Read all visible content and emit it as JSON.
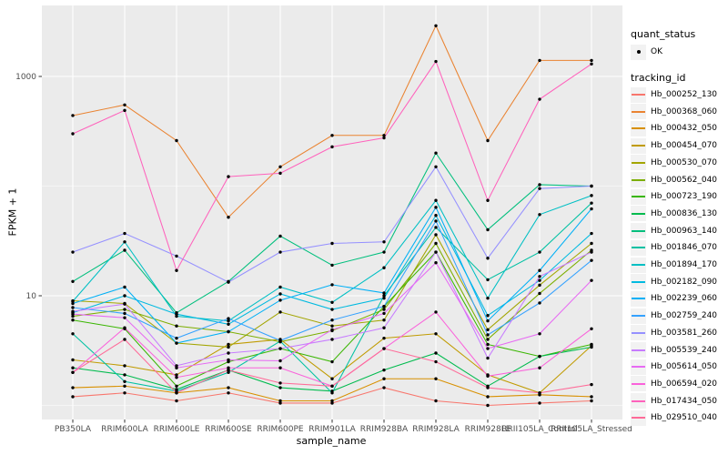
{
  "figure": {
    "background": "#FFFFFF",
    "panel_background": "#EBEBEB",
    "grid_color": "#FFFFFF",
    "axis_text_color": "#4D4D4D",
    "tick_color": "#333333",
    "point_color": "#000000"
  },
  "axes": {
    "x_title": "sample_name",
    "y_title": "FPKM + 1"
  },
  "legend": {
    "quant_status_title": "quant_status",
    "quant_status_items": [
      {
        "label": "OK",
        "shape": "point"
      }
    ],
    "tracking_id_title": "tracking_id"
  },
  "chart_data": {
    "type": "line",
    "title": "",
    "xlabel": "sample_name",
    "ylabel": "FPKM + 1",
    "y_scale": "log10",
    "grid": true,
    "legend_position": "right",
    "y_major_ticks": [
      1000,
      10
    ],
    "y_minor_gridlines": [
      100,
      1
    ],
    "ylim_log": [
      1,
      3000
    ],
    "point_marker": "black-dot",
    "categories": [
      "PB350LA",
      "RRIM600LA",
      "RRIM600LE",
      "RRIM600SE",
      "RRIM600PE",
      "RRIM901LA",
      "RRIM928BA",
      "RRIM928LA",
      "RRIM928LE",
      "RRII105LA_Control",
      "RRII105LA_Stressed"
    ],
    "series": [
      {
        "name": "Hb_000252_130",
        "color": "#F8766D",
        "values": [
          1.2,
          1.3,
          1.1,
          1.3,
          1.05,
          1.05,
          1.45,
          1.1,
          1.0,
          1.05,
          1.1
        ]
      },
      {
        "name": "Hb_000368_060",
        "color": "#EA8331",
        "values": [
          440,
          550,
          260,
          52,
          150,
          290,
          290,
          2900,
          260,
          1400,
          1400
        ]
      },
      {
        "name": "Hb_000432_050",
        "color": "#D89000",
        "values": [
          1.45,
          1.5,
          1.3,
          1.45,
          1.1,
          1.1,
          1.75,
          1.75,
          1.2,
          1.25,
          1.2
        ]
      },
      {
        "name": "Hb_000454_070",
        "color": "#C09B00",
        "values": [
          2.6,
          2.3,
          1.9,
          3.6,
          4.0,
          1.75,
          4.1,
          4.5,
          1.9,
          1.3,
          3.5
        ]
      },
      {
        "name": "Hb_000530_070",
        "color": "#A3A500",
        "values": [
          9.0,
          8.5,
          3.7,
          3.4,
          7.1,
          5.3,
          6.0,
          36,
          4.9,
          12.5,
          30
        ]
      },
      {
        "name": "Hb_000562_040",
        "color": "#7CAE00",
        "values": [
          6.5,
          7.5,
          5.3,
          4.7,
          3.8,
          4.8,
          7.5,
          30,
          4.0,
          10.5,
          26
        ]
      },
      {
        "name": "Hb_000723_190",
        "color": "#39B600",
        "values": [
          6.0,
          5.0,
          1.5,
          2.5,
          3.3,
          2.5,
          8.0,
          25,
          3.6,
          2.8,
          3.6
        ]
      },
      {
        "name": "Hb_000836_130",
        "color": "#00BB4E",
        "values": [
          2.2,
          1.9,
          1.4,
          2.1,
          1.45,
          1.35,
          2.1,
          3.0,
          1.5,
          2.8,
          3.4
        ]
      },
      {
        "name": "Hb_000963_140",
        "color": "#00BF7D",
        "values": [
          13.5,
          26,
          7.0,
          13.5,
          35,
          19,
          25,
          200,
          40,
          103,
          100
        ]
      },
      {
        "name": "Hb_001846_070",
        "color": "#00C1A3",
        "values": [
          4.5,
          1.65,
          1.35,
          2.0,
          3.85,
          1.3,
          10,
          42,
          14,
          25,
          70
        ]
      },
      {
        "name": "Hb_001894_170",
        "color": "#00BFC4",
        "values": [
          8.9,
          31,
          6.5,
          5.9,
          12,
          8.7,
          18,
          74,
          9.5,
          55,
          82
        ]
      },
      {
        "name": "Hb_002182_090",
        "color": "#00BAE0",
        "values": [
          7.0,
          10,
          6.8,
          5.5,
          10.4,
          7.5,
          9.5,
          54,
          6.6,
          13.8,
          37
        ]
      },
      {
        "name": "Hb_002239_060",
        "color": "#00B0F6",
        "values": [
          8.5,
          12,
          3.7,
          4.7,
          9.1,
          12.6,
          10.6,
          64,
          5.9,
          17,
          62
        ]
      },
      {
        "name": "Hb_002759_240",
        "color": "#35A2FF",
        "values": [
          7.8,
          6.9,
          4.1,
          6.2,
          3.9,
          6.0,
          8.0,
          48,
          4.4,
          8.6,
          21
        ]
      },
      {
        "name": "Hb_003581_260",
        "color": "#9590FF",
        "values": [
          25,
          37,
          23,
          13.3,
          25,
          30,
          31,
          150,
          22,
          95,
          100
        ]
      },
      {
        "name": "Hb_005539_240",
        "color": "#C77CFF",
        "values": [
          7.2,
          8.4,
          2.3,
          3.0,
          3.3,
          4.0,
          5.1,
          25,
          2.7,
          15,
          25
        ]
      },
      {
        "name": "Hb_005614_050",
        "color": "#E76BF3",
        "values": [
          6.8,
          6.3,
          2.2,
          2.6,
          2.55,
          4.9,
          6.9,
          20,
          3.3,
          4.5,
          13.8
        ]
      },
      {
        "name": "Hb_006594_020",
        "color": "#FA62DB",
        "values": [
          2.0,
          5.1,
          1.8,
          2.2,
          2.2,
          1.5,
          3.3,
          7.1,
          1.85,
          2.2,
          5.0
        ]
      },
      {
        "name": "Hb_017434_050",
        "color": "#FF62BC",
        "values": [
          300,
          490,
          17,
          122,
          131,
          228,
          275,
          1370,
          74,
          620,
          1300
        ]
      },
      {
        "name": "Hb_029510_040",
        "color": "#FF6A98",
        "values": [
          2.0,
          4.0,
          1.3,
          2.1,
          1.6,
          1.5,
          3.3,
          2.5,
          1.45,
          1.3,
          1.55
        ]
      }
    ]
  }
}
